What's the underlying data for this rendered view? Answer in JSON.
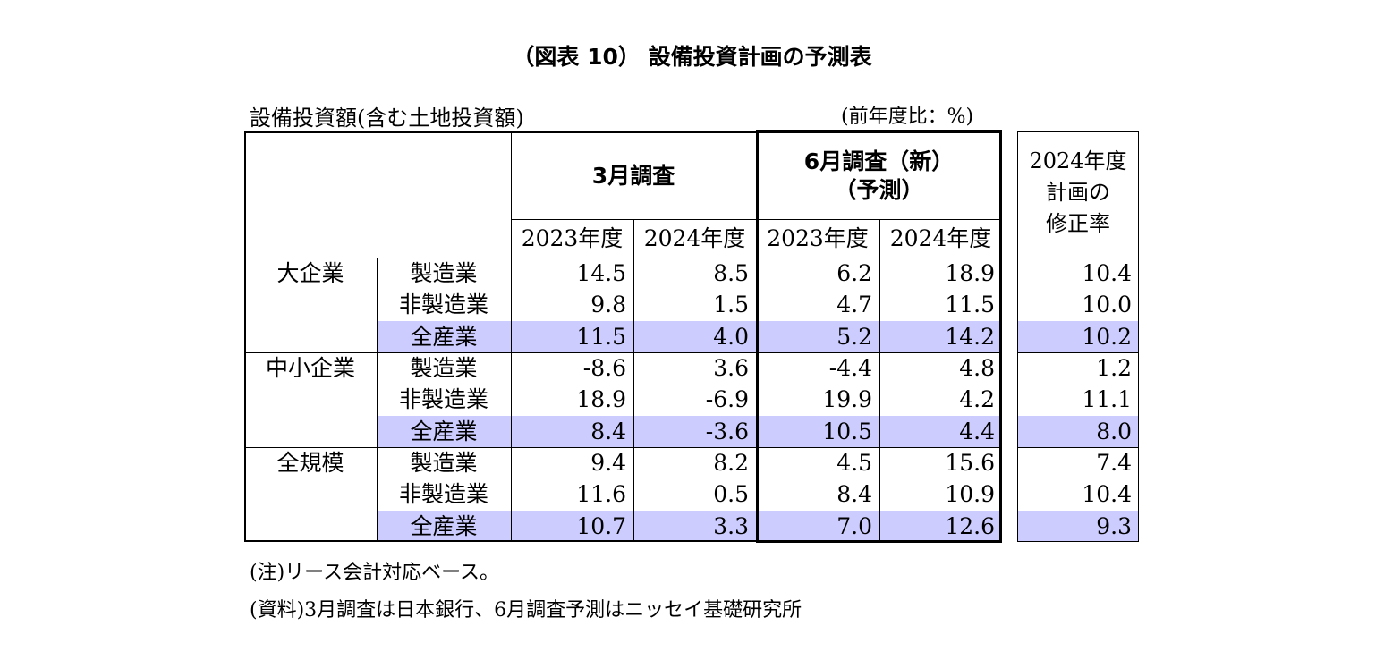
{
  "title": "（図表 10） 設備投資計画の予測表",
  "subtitle": "設備投資額(含む土地投資額)",
  "unit": "(前年度比：%)",
  "headers": {
    "march": "3月調査",
    "june_line1": "6月調査（新）",
    "june_line2": "（予測）",
    "year_2023": "2023年度",
    "year_2024": "2024年度",
    "revision_line1": "2024年度",
    "revision_line2": "計画の",
    "revision_line3": "修正率"
  },
  "groups": [
    {
      "name": "大企業",
      "rows": [
        {
          "industry": "製造業",
          "m2023": "14.5",
          "m2024": "8.5",
          "j2023": "6.2",
          "j2024": "18.9",
          "rev": "10.4"
        },
        {
          "industry": "非製造業",
          "m2023": "9.8",
          "m2024": "1.5",
          "j2023": "4.7",
          "j2024": "11.5",
          "rev": "10.0"
        },
        {
          "industry": "全産業",
          "m2023": "11.5",
          "m2024": "4.0",
          "j2023": "5.2",
          "j2024": "14.2",
          "rev": "10.2"
        }
      ]
    },
    {
      "name": "中小企業",
      "rows": [
        {
          "industry": "製造業",
          "m2023": "-8.6",
          "m2024": "3.6",
          "j2023": "-4.4",
          "j2024": "4.8",
          "rev": "1.2"
        },
        {
          "industry": "非製造業",
          "m2023": "18.9",
          "m2024": "-6.9",
          "j2023": "19.9",
          "j2024": "4.2",
          "rev": "11.1"
        },
        {
          "industry": "全産業",
          "m2023": "8.4",
          "m2024": "-3.6",
          "j2023": "10.5",
          "j2024": "4.4",
          "rev": "8.0"
        }
      ]
    },
    {
      "name": "全規模",
      "rows": [
        {
          "industry": "製造業",
          "m2023": "9.4",
          "m2024": "8.2",
          "j2023": "4.5",
          "j2024": "15.6",
          "rev": "7.4"
        },
        {
          "industry": "非製造業",
          "m2023": "11.6",
          "m2024": "0.5",
          "j2023": "8.4",
          "j2024": "10.9",
          "rev": "10.4"
        },
        {
          "industry": "全産業",
          "m2023": "10.7",
          "m2024": "3.3",
          "j2023": "7.0",
          "j2024": "12.6",
          "rev": "9.3"
        }
      ]
    }
  ],
  "notes": {
    "note1": "(注)リース会計対応ベース。",
    "note2": "(資料)3月調査は日本銀行、6月調査予測はニッセイ基礎研究所"
  },
  "colors": {
    "highlight": "#ccccff"
  }
}
